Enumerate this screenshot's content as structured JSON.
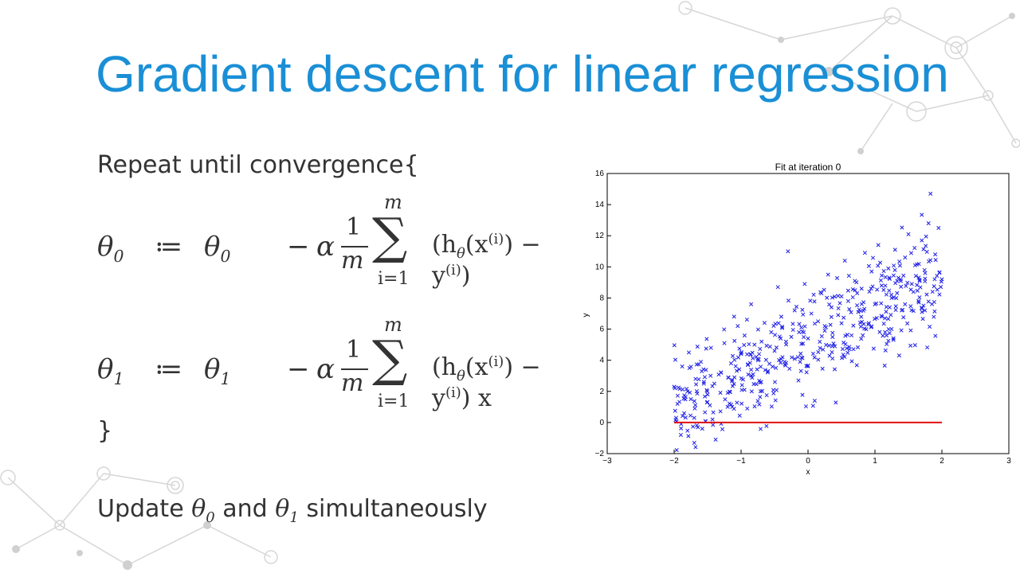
{
  "title": "Gradient descent for linear regression",
  "body": {
    "repeat_line": "Repeat until convergence{",
    "close_brace": "}",
    "update_prefix": "Update",
    "update_theta0": "θ",
    "update_theta0_sub": "0",
    "update_and": "and",
    "update_theta1": "θ",
    "update_theta1_sub": "1",
    "update_suffix": "simultaneously"
  },
  "equations": [
    {
      "lhs": "θ",
      "lhs_sub": "0",
      "assign": "≔",
      "rhs_theta": "θ",
      "rhs_sub": "0",
      "minus": "−",
      "alpha": "α",
      "frac_num": "1",
      "frac_den": "m",
      "sum_symbol": "∑",
      "sum_upper": "m",
      "sum_lower": "i=1",
      "term": "(h",
      "term_sub": "θ",
      "term_mid": "(x",
      "term_sup": "(i)",
      "term_mid2": ") − y",
      "term_sup2": "(i)",
      "term_end": ")"
    },
    {
      "lhs": "θ",
      "lhs_sub": "1",
      "assign": "≔",
      "rhs_theta": "θ",
      "rhs_sub": "1",
      "minus": "−",
      "alpha": "α",
      "frac_num": "1",
      "frac_den": "m",
      "sum_symbol": "∑",
      "sum_upper": "m",
      "sum_lower": "i=1",
      "term": "(h",
      "term_sub": "θ",
      "term_mid": "(x",
      "term_sup": "(i)",
      "term_mid2": ") − y",
      "term_sup2": "(i)",
      "term_end": ") x"
    }
  ],
  "chart_data": {
    "type": "scatter",
    "title": "Fit at iteration 0",
    "xlabel": "x",
    "ylabel": "y",
    "xlim": [
      -3,
      3
    ],
    "ylim": [
      -2,
      16
    ],
    "xticks": [
      "−3",
      "−2",
      "−1",
      "0",
      "1",
      "2",
      "3"
    ],
    "yticks": [
      "−2",
      "0",
      "2",
      "4",
      "6",
      "8",
      "10",
      "12",
      "14",
      "16"
    ],
    "grid": false,
    "marker": "x",
    "marker_color": "#1f1fe6",
    "line_color": "#e01010",
    "scatter_note": "approximately 500 points, x uniform in [-2, 2], y ≈ 2.2x + 5 with noise (sd ≈ 1.7)",
    "points": [
      [
        -2.0,
        2.3
      ],
      [
        -1.95,
        1.2
      ],
      [
        -1.9,
        -0.8
      ],
      [
        -1.88,
        3.6
      ],
      [
        -1.85,
        0.6
      ],
      [
        -1.8,
        2.0
      ],
      [
        -1.78,
        4.5
      ],
      [
        -1.75,
        1.5
      ],
      [
        -1.7,
        0.3
      ],
      [
        -1.68,
        2.8
      ],
      [
        -1.6,
        3.9
      ],
      [
        -1.58,
        -0.4
      ],
      [
        -1.5,
        1.8
      ],
      [
        -1.45,
        4.8
      ],
      [
        -1.4,
        2.5
      ],
      [
        -1.38,
        -1.1
      ],
      [
        -1.3,
        3.2
      ],
      [
        -1.25,
        5.1
      ],
      [
        -1.2,
        1.9
      ],
      [
        -1.15,
        3.8
      ],
      [
        -1.1,
        2.9
      ],
      [
        -1.05,
        6.2
      ],
      [
        -1.0,
        4.4
      ],
      [
        -0.95,
        2.1
      ],
      [
        -0.9,
        3.7
      ],
      [
        -0.85,
        7.6
      ],
      [
        -0.8,
        5.0
      ],
      [
        -0.75,
        4.1
      ],
      [
        -0.7,
        2.6
      ],
      [
        -0.65,
        6.4
      ],
      [
        -0.6,
        3.3
      ],
      [
        -0.55,
        5.8
      ],
      [
        -0.5,
        4.6
      ],
      [
        -0.45,
        8.7
      ],
      [
        -0.4,
        6.8
      ],
      [
        -0.35,
        3.9
      ],
      [
        -0.3,
        11.0
      ],
      [
        -0.25,
        5.5
      ],
      [
        -0.2,
        7.2
      ],
      [
        -0.15,
        4.2
      ],
      [
        -0.1,
        6.1
      ],
      [
        -0.05,
        8.9
      ],
      [
        0.0,
        5.4
      ],
      [
        0.05,
        7.0
      ],
      [
        0.1,
        1.4
      ],
      [
        0.15,
        6.5
      ],
      [
        0.2,
        8.3
      ],
      [
        0.25,
        5.9
      ],
      [
        0.3,
        9.5
      ],
      [
        0.35,
        7.4
      ],
      [
        0.4,
        4.9
      ],
      [
        0.45,
        6.9
      ],
      [
        0.5,
        8.1
      ],
      [
        0.55,
        10.4
      ],
      [
        0.6,
        7.8
      ],
      [
        0.65,
        5.6
      ],
      [
        0.7,
        9.1
      ],
      [
        0.75,
        7.1
      ],
      [
        0.8,
        8.6
      ],
      [
        0.85,
        10.9
      ],
      [
        0.9,
        6.3
      ],
      [
        0.95,
        9.7
      ],
      [
        1.0,
        7.6
      ],
      [
        1.05,
        11.4
      ],
      [
        1.1,
        8.8
      ],
      [
        1.15,
        6.7
      ],
      [
        1.2,
        9.9
      ],
      [
        1.25,
        8.0
      ],
      [
        1.3,
        11.1
      ],
      [
        1.35,
        9.3
      ],
      [
        1.4,
        7.2
      ],
      [
        1.45,
        10.6
      ],
      [
        1.5,
        12.1
      ],
      [
        1.55,
        8.9
      ],
      [
        1.6,
        10.1
      ],
      [
        1.65,
        7.8
      ],
      [
        1.7,
        11.7
      ],
      [
        1.75,
        9.6
      ],
      [
        1.8,
        12.8
      ],
      [
        1.83,
        14.7
      ],
      [
        1.86,
        8.4
      ],
      [
        1.9,
        10.8
      ],
      [
        1.95,
        12.5
      ],
      [
        2.0,
        9.2
      ]
    ],
    "line": {
      "x": [
        -2,
        2
      ],
      "y": [
        0,
        0
      ]
    }
  }
}
